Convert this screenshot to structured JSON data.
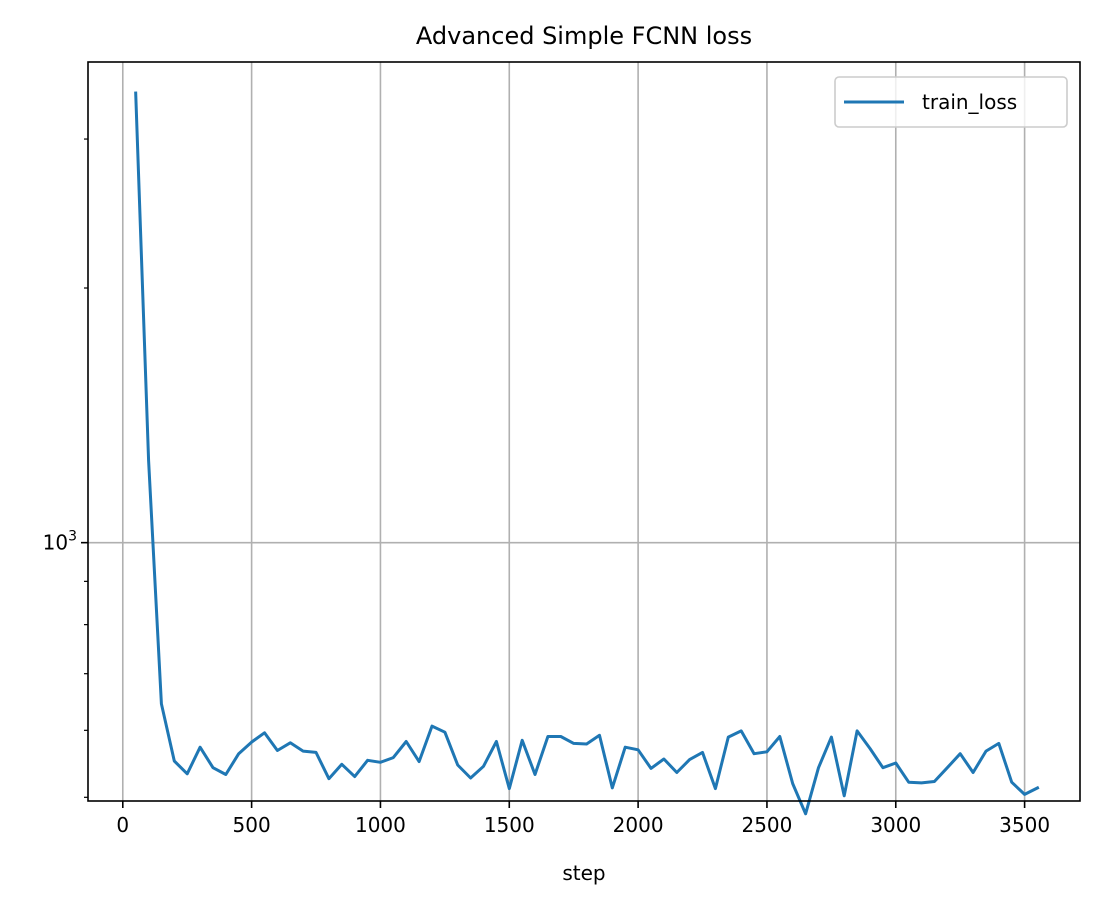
{
  "chart_data": {
    "type": "line",
    "title": "Advanced Simple FCNN loss",
    "xlabel": "step",
    "ylabel": "",
    "yscale": "log",
    "xlim": [
      -135,
      3715
    ],
    "ylim": [
      495,
      3700
    ],
    "grid": true,
    "legend_position": "upper right",
    "x_ticks": [
      0,
      500,
      1000,
      1500,
      2000,
      2500,
      3000,
      3500
    ],
    "x_tick_labels": [
      "0",
      "500",
      "1000",
      "1500",
      "2000",
      "2500",
      "3000",
      "3500"
    ],
    "y_major_tick_label": {
      "base": "10",
      "exponent": "3",
      "value": 1000
    },
    "y_minor_ticks": [
      500,
      600,
      700,
      800,
      900,
      2000,
      3000
    ],
    "series": [
      {
        "name": "train_loss",
        "color": "#1f77b4",
        "x": [
          50,
          100,
          150,
          200,
          250,
          300,
          350,
          400,
          450,
          500,
          550,
          600,
          650,
          700,
          750,
          800,
          850,
          900,
          950,
          1000,
          1050,
          1100,
          1150,
          1200,
          1250,
          1300,
          1350,
          1400,
          1450,
          1500,
          1550,
          1600,
          1650,
          1700,
          1750,
          1800,
          1850,
          1900,
          1950,
          2000,
          2050,
          2100,
          2150,
          2200,
          2250,
          2300,
          2350,
          2400,
          2450,
          2500,
          2550,
          2600,
          2650,
          2700,
          2750,
          2800,
          2850,
          2900,
          2950,
          3000,
          3050,
          3100,
          3150,
          3200,
          3250,
          3300,
          3350,
          3400,
          3450,
          3500,
          3550
        ],
        "y": [
          3400,
          1250,
          645,
          552,
          533,
          573,
          542,
          532,
          563,
          581,
          596,
          568,
          580,
          567,
          565,
          526,
          547,
          529,
          553,
          550,
          557,
          582,
          551,
          607,
          597,
          546,
          527,
          544,
          582,
          512,
          584,
          532,
          590,
          590,
          579,
          578,
          592,
          513,
          573,
          569,
          541,
          555,
          535,
          554,
          565,
          512,
          589,
          599,
          563,
          566,
          590,
          519,
          478,
          542,
          589,
          502,
          599,
          571,
          542,
          549,
          521,
          520,
          522,
          542,
          563,
          535,
          567,
          579,
          521,
          504,
          513
        ]
      }
    ]
  }
}
